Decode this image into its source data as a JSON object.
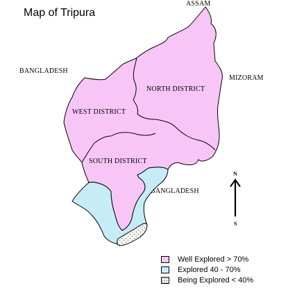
{
  "title": "Map of Tripura",
  "surroundings": {
    "north": "ASSAM",
    "west": "BANGLADESH",
    "east": "MIZORAM",
    "south": "BANGLADESH"
  },
  "districts": {
    "north": "NORTH DISTRICT",
    "west": "WEST DISTRICT",
    "south": "SOUTH DISTRICT"
  },
  "compass": {
    "north": "N",
    "south": "S"
  },
  "colors": {
    "well_explored": "#f7c6f7",
    "explored": "#c6ecf7",
    "being_explored": "#f4f4f0",
    "outline": "#000000"
  },
  "legend": [
    {
      "label": "Well Explored > 70%",
      "swatch": "well_explored"
    },
    {
      "label": "Explored 40 - 70%",
      "swatch": "explored"
    },
    {
      "label": "Being Explored < 40%",
      "swatch": "being_explored"
    }
  ]
}
